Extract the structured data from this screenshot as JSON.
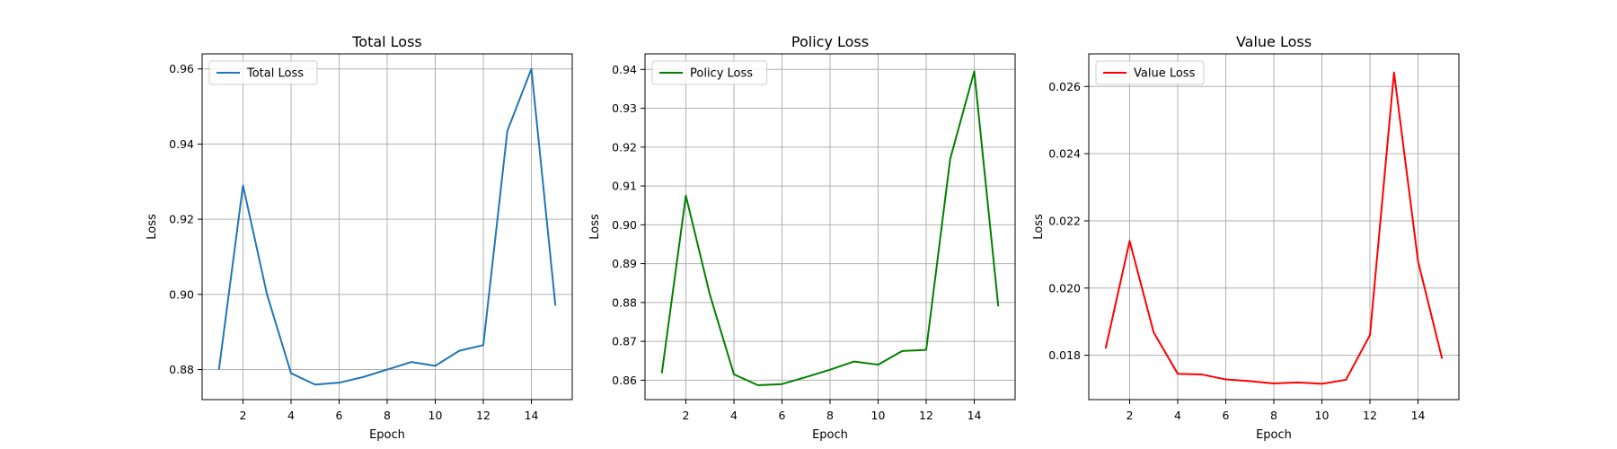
{
  "chart_data": [
    {
      "type": "line",
      "title": "Total Loss",
      "xlabel": "Epoch",
      "ylabel": "Loss",
      "grid": true,
      "legend_placement": "top-left",
      "xlim": [
        0.3,
        15.7
      ],
      "ylim": [
        0.872,
        0.964
      ],
      "xticks": [
        2,
        4,
        6,
        8,
        10,
        12,
        14
      ],
      "xtick_labels": [
        "2",
        "4",
        "6",
        "8",
        "10",
        "12",
        "14"
      ],
      "yticks": [
        0.88,
        0.9,
        0.92,
        0.94,
        0.96
      ],
      "ytick_labels": [
        "0.88",
        "0.90",
        "0.92",
        "0.94",
        "0.96"
      ],
      "series": [
        {
          "name": "Total Loss",
          "color": "#1f77b4",
          "x": [
            1,
            2,
            3,
            4,
            5,
            6,
            7,
            8,
            9,
            10,
            11,
            12,
            13,
            14,
            15
          ],
          "y": [
            0.88,
            0.929,
            0.9,
            0.879,
            0.876,
            0.8765,
            0.878,
            0.88,
            0.882,
            0.881,
            0.885,
            0.8865,
            0.9435,
            0.96,
            0.897
          ]
        }
      ]
    },
    {
      "type": "line",
      "title": "Policy Loss",
      "xlabel": "Epoch",
      "ylabel": "Loss",
      "grid": true,
      "legend_placement": "top-left",
      "xlim": [
        0.3,
        15.7
      ],
      "ylim": [
        0.855,
        0.944
      ],
      "xticks": [
        2,
        4,
        6,
        8,
        10,
        12,
        14
      ],
      "xtick_labels": [
        "2",
        "4",
        "6",
        "8",
        "10",
        "12",
        "14"
      ],
      "yticks": [
        0.86,
        0.87,
        0.88,
        0.89,
        0.9,
        0.91,
        0.92,
        0.93,
        0.94
      ],
      "ytick_labels": [
        "0.86",
        "0.87",
        "0.88",
        "0.89",
        "0.90",
        "0.91",
        "0.92",
        "0.93",
        "0.94"
      ],
      "series": [
        {
          "name": "Policy Loss",
          "color": "#008000",
          "x": [
            1,
            2,
            3,
            4,
            5,
            6,
            7,
            8,
            9,
            10,
            11,
            12,
            13,
            14,
            15
          ],
          "y": [
            0.8618,
            0.9075,
            0.882,
            0.8615,
            0.8587,
            0.859,
            0.8608,
            0.8627,
            0.8648,
            0.864,
            0.8675,
            0.8678,
            0.917,
            0.9395,
            0.879
          ]
        }
      ]
    },
    {
      "type": "line",
      "title": "Value Loss",
      "xlabel": "Epoch",
      "ylabel": "Loss",
      "grid": true,
      "legend_placement": "top-left",
      "xlim": [
        0.3,
        15.7
      ],
      "ylim": [
        0.01668,
        0.02697
      ],
      "xticks": [
        2,
        4,
        6,
        8,
        10,
        12,
        14
      ],
      "xtick_labels": [
        "2",
        "4",
        "6",
        "8",
        "10",
        "12",
        "14"
      ],
      "yticks": [
        0.018,
        0.02,
        0.022,
        0.024,
        0.026
      ],
      "ytick_labels": [
        "0.018",
        "0.020",
        "0.022",
        "0.024",
        "0.026"
      ],
      "series": [
        {
          "name": "Value Loss",
          "color": "#ff0000",
          "x": [
            1,
            2,
            3,
            4,
            5,
            6,
            7,
            8,
            9,
            10,
            11,
            12,
            13,
            14,
            15
          ],
          "y": [
            0.0182,
            0.0214,
            0.01868,
            0.01745,
            0.01743,
            0.01728,
            0.01723,
            0.01716,
            0.01719,
            0.01715,
            0.01727,
            0.0186,
            0.02642,
            0.0208,
            0.0179
          ]
        }
      ]
    }
  ]
}
